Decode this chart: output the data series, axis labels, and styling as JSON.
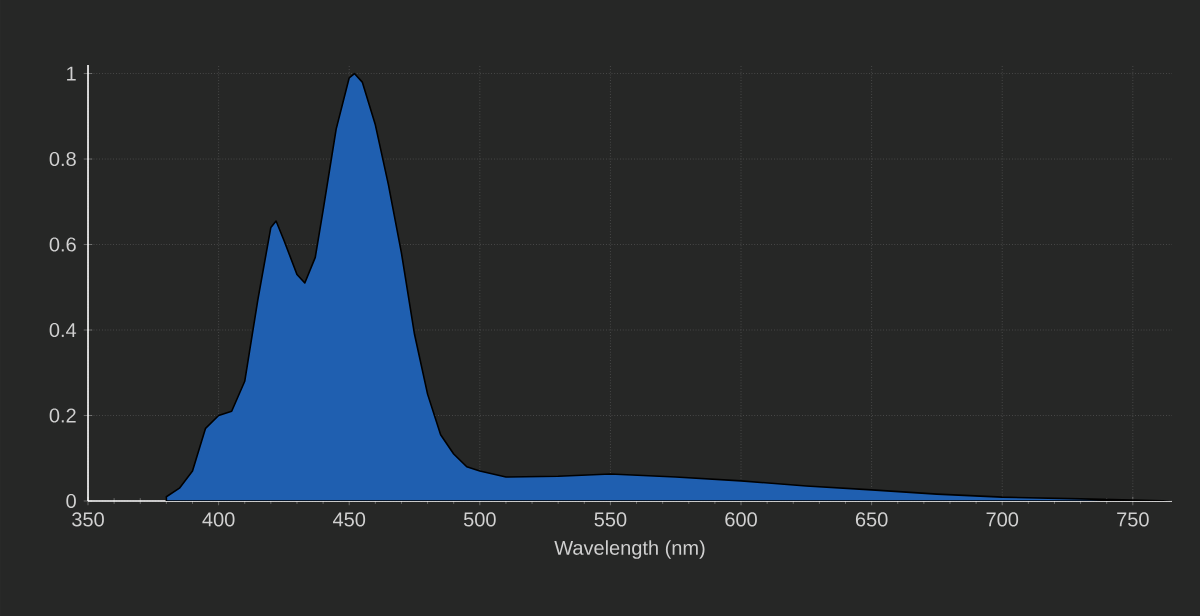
{
  "chart_data": {
    "type": "area",
    "xlabel": "Wavelength (nm)",
    "x": [
      380,
      385,
      390,
      395,
      400,
      405,
      410,
      415,
      420,
      422,
      425,
      430,
      433,
      437,
      440,
      445,
      450,
      452,
      455,
      460,
      465,
      470,
      475,
      480,
      485,
      490,
      495,
      500,
      510,
      530,
      550,
      575,
      600,
      625,
      650,
      675,
      700,
      730,
      750,
      765
    ],
    "series": [
      {
        "color": "#1f5fb0",
        "values": [
          0.01,
          0.03,
          0.07,
          0.17,
          0.2,
          0.21,
          0.28,
          0.47,
          0.64,
          0.655,
          0.61,
          0.53,
          0.51,
          0.57,
          0.68,
          0.87,
          0.99,
          1.0,
          0.98,
          0.88,
          0.74,
          0.58,
          0.39,
          0.25,
          0.155,
          0.11,
          0.08,
          0.07,
          0.056,
          0.058,
          0.063,
          0.056,
          0.047,
          0.035,
          0.026,
          0.016,
          0.009,
          0.005,
          0.002,
          0
        ]
      }
    ],
    "xlim": [
      350,
      765
    ],
    "ylim": [
      0,
      1.02
    ],
    "xticks": [
      350,
      400,
      450,
      500,
      550,
      600,
      650,
      700,
      750
    ],
    "yticks": [
      0,
      0.2,
      0.4,
      0.6,
      0.8,
      1
    ],
    "grid": true
  }
}
